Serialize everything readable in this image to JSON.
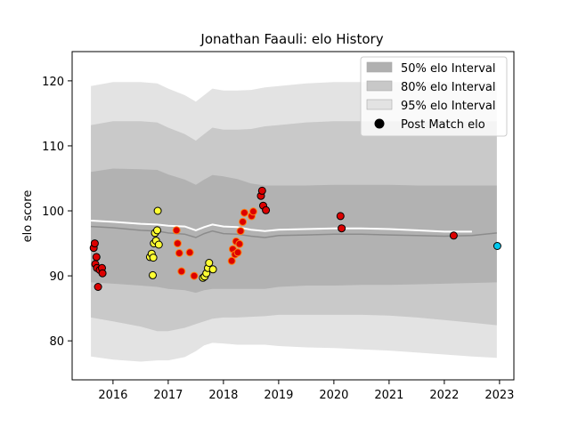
{
  "chart_data": {
    "type": "scatter",
    "title": "Jonathan Faauli: elo History",
    "xlabel": "",
    "ylabel": "elo score",
    "xlim": [
      2015.26,
      2023.26
    ],
    "ylim": [
      74,
      124.5
    ],
    "x_ticks": [
      2016,
      2017,
      2018,
      2019,
      2020,
      2021,
      2022,
      2023
    ],
    "y_ticks": [
      80,
      90,
      100,
      110,
      120
    ],
    "grid": false,
    "legend_position": "top-right",
    "legend": [
      {
        "label": "50% elo Interval",
        "kind": "band",
        "color": "#b0b0b0"
      },
      {
        "label": "80% elo Interval",
        "kind": "band",
        "color": "#c8c8c8"
      },
      {
        "label": "95% elo Interval",
        "kind": "band",
        "color": "#e3e3e3"
      },
      {
        "label": "Post Match elo",
        "kind": "marker",
        "color": "#000000"
      }
    ],
    "colors": {
      "band50": "#b2b2b2",
      "band80": "#c9c9c9",
      "band95": "#e3e3e3",
      "mean_line": "#8c8c8c",
      "white_line": "#ffffff",
      "red": "#dd0000",
      "yellow": "#ffff33",
      "cyan": "#00c8ee",
      "orange_edge": "#ff7f0e",
      "dark_edge": "#000000"
    },
    "bands": {
      "x": [
        2015.6,
        2016.0,
        2016.5,
        2016.8,
        2017.0,
        2017.3,
        2017.5,
        2017.65,
        2017.8,
        2018.0,
        2018.25,
        2018.5,
        2018.75,
        2019.0,
        2019.5,
        2020.0,
        2020.5,
        2021.0,
        2021.5,
        2022.0,
        2022.5,
        2022.95
      ],
      "p95_upper": [
        119.2,
        119.8,
        119.8,
        119.6,
        118.8,
        117.8,
        116.8,
        117.8,
        118.8,
        118.5,
        118.5,
        118.6,
        119.0,
        119.2,
        119.6,
        119.8,
        119.8,
        119.8,
        119.8,
        119.8,
        119.8,
        119.8
      ],
      "p80_upper": [
        113.2,
        113.8,
        113.8,
        113.6,
        112.8,
        111.8,
        110.8,
        111.8,
        112.8,
        112.5,
        112.5,
        112.6,
        113.0,
        113.2,
        113.6,
        113.8,
        113.8,
        113.8,
        113.8,
        113.8,
        113.8,
        113.8
      ],
      "p50_upper": [
        106.0,
        106.5,
        106.4,
        106.3,
        105.6,
        104.8,
        104.0,
        104.8,
        105.5,
        105.3,
        104.9,
        104.2,
        103.9,
        103.9,
        103.9,
        104.0,
        104.0,
        104.0,
        103.9,
        103.9,
        103.9,
        103.9
      ],
      "mean": [
        97.6,
        97.4,
        97.0,
        96.9,
        96.6,
        96.4,
        95.9,
        96.5,
        96.9,
        96.5,
        96.4,
        96.1,
        95.9,
        96.2,
        96.3,
        96.4,
        96.4,
        96.3,
        96.2,
        96.1,
        96.2,
        96.6
      ],
      "p50_lower": [
        89.0,
        88.8,
        88.5,
        88.3,
        88.0,
        87.8,
        87.4,
        87.8,
        88.0,
        88.0,
        88.0,
        88.0,
        88.0,
        88.3,
        88.5,
        88.5,
        88.6,
        88.6,
        88.7,
        88.8,
        88.9,
        89.0
      ],
      "p80_lower": [
        83.6,
        83.0,
        82.2,
        81.5,
        81.5,
        82.0,
        82.6,
        83.0,
        83.4,
        83.6,
        83.6,
        83.7,
        83.8,
        84.0,
        84.0,
        84.0,
        84.0,
        83.9,
        83.6,
        83.2,
        82.8,
        82.4
      ],
      "p95_lower": [
        77.6,
        77.1,
        76.8,
        77.0,
        77.0,
        77.5,
        78.4,
        79.3,
        79.7,
        79.6,
        79.4,
        79.4,
        79.4,
        79.2,
        79.0,
        78.9,
        78.7,
        78.5,
        78.2,
        77.9,
        77.6,
        77.4
      ]
    },
    "white_line": {
      "x": [
        2015.6,
        2016.0,
        2016.5,
        2016.8,
        2017.0,
        2017.3,
        2017.5,
        2017.65,
        2017.8,
        2018.0,
        2018.25,
        2018.5,
        2018.75,
        2019.0,
        2019.5,
        2020.0,
        2020.5,
        2021.0,
        2021.5,
        2022.0,
        2022.5
      ],
      "y": [
        98.5,
        98.3,
        98.0,
        97.9,
        97.7,
        97.6,
        97.0,
        97.5,
        97.9,
        97.6,
        97.5,
        97.1,
        96.9,
        97.1,
        97.2,
        97.3,
        97.3,
        97.2,
        97.0,
        96.8,
        96.8
      ]
    },
    "points": [
      {
        "x": 2015.65,
        "y": 94.3,
        "fill": "red",
        "edge": "dark"
      },
      {
        "x": 2015.67,
        "y": 95.0,
        "fill": "red",
        "edge": "dark"
      },
      {
        "x": 2015.68,
        "y": 91.8,
        "fill": "red",
        "edge": "dark"
      },
      {
        "x": 2015.7,
        "y": 92.9,
        "fill": "red",
        "edge": "dark"
      },
      {
        "x": 2015.71,
        "y": 91.2,
        "fill": "red",
        "edge": "dark"
      },
      {
        "x": 2015.73,
        "y": 88.3,
        "fill": "red",
        "edge": "dark"
      },
      {
        "x": 2015.76,
        "y": 90.9,
        "fill": "red",
        "edge": "dark"
      },
      {
        "x": 2015.8,
        "y": 91.2,
        "fill": "red",
        "edge": "dark"
      },
      {
        "x": 2015.81,
        "y": 90.4,
        "fill": "red",
        "edge": "dark"
      },
      {
        "x": 2016.67,
        "y": 92.9,
        "fill": "yellow",
        "edge": "dark"
      },
      {
        "x": 2016.7,
        "y": 93.4,
        "fill": "yellow",
        "edge": "dark"
      },
      {
        "x": 2016.72,
        "y": 90.1,
        "fill": "yellow",
        "edge": "dark"
      },
      {
        "x": 2016.73,
        "y": 92.8,
        "fill": "yellow",
        "edge": "dark"
      },
      {
        "x": 2016.74,
        "y": 95.0,
        "fill": "yellow",
        "edge": "dark"
      },
      {
        "x": 2016.76,
        "y": 96.6,
        "fill": "yellow",
        "edge": "dark"
      },
      {
        "x": 2016.78,
        "y": 95.4,
        "fill": "yellow",
        "edge": "dark"
      },
      {
        "x": 2016.8,
        "y": 97.0,
        "fill": "yellow",
        "edge": "dark"
      },
      {
        "x": 2016.81,
        "y": 100.0,
        "fill": "yellow",
        "edge": "dark"
      },
      {
        "x": 2016.83,
        "y": 94.8,
        "fill": "yellow",
        "edge": "dark"
      },
      {
        "x": 2017.15,
        "y": 97.0,
        "fill": "red",
        "edge": "orange"
      },
      {
        "x": 2017.17,
        "y": 95.0,
        "fill": "red",
        "edge": "orange"
      },
      {
        "x": 2017.2,
        "y": 93.5,
        "fill": "red",
        "edge": "orange"
      },
      {
        "x": 2017.24,
        "y": 90.7,
        "fill": "red",
        "edge": "orange"
      },
      {
        "x": 2017.39,
        "y": 93.6,
        "fill": "red",
        "edge": "orange"
      },
      {
        "x": 2017.47,
        "y": 90.0,
        "fill": "red",
        "edge": "orange"
      },
      {
        "x": 2017.63,
        "y": 89.7,
        "fill": "yellow",
        "edge": "dark"
      },
      {
        "x": 2017.66,
        "y": 89.9,
        "fill": "yellow",
        "edge": "dark"
      },
      {
        "x": 2017.69,
        "y": 90.4,
        "fill": "yellow",
        "edge": "dark"
      },
      {
        "x": 2017.72,
        "y": 91.2,
        "fill": "yellow",
        "edge": "dark"
      },
      {
        "x": 2017.74,
        "y": 92.0,
        "fill": "yellow",
        "edge": "dark"
      },
      {
        "x": 2017.81,
        "y": 91.0,
        "fill": "yellow",
        "edge": "dark"
      },
      {
        "x": 2018.15,
        "y": 92.3,
        "fill": "red",
        "edge": "orange"
      },
      {
        "x": 2018.17,
        "y": 94.1,
        "fill": "red",
        "edge": "orange"
      },
      {
        "x": 2018.21,
        "y": 93.3,
        "fill": "red",
        "edge": "orange"
      },
      {
        "x": 2018.23,
        "y": 95.3,
        "fill": "red",
        "edge": "orange"
      },
      {
        "x": 2018.26,
        "y": 93.6,
        "fill": "red",
        "edge": "orange"
      },
      {
        "x": 2018.29,
        "y": 94.9,
        "fill": "red",
        "edge": "orange"
      },
      {
        "x": 2018.31,
        "y": 96.9,
        "fill": "red",
        "edge": "orange"
      },
      {
        "x": 2018.35,
        "y": 98.3,
        "fill": "red",
        "edge": "orange"
      },
      {
        "x": 2018.38,
        "y": 99.7,
        "fill": "red",
        "edge": "orange"
      },
      {
        "x": 2018.51,
        "y": 99.2,
        "fill": "red",
        "edge": "orange"
      },
      {
        "x": 2018.54,
        "y": 99.9,
        "fill": "red",
        "edge": "orange"
      },
      {
        "x": 2018.68,
        "y": 102.3,
        "fill": "red",
        "edge": "dark"
      },
      {
        "x": 2018.7,
        "y": 103.1,
        "fill": "red",
        "edge": "dark"
      },
      {
        "x": 2018.72,
        "y": 100.8,
        "fill": "red",
        "edge": "dark"
      },
      {
        "x": 2018.77,
        "y": 100.1,
        "fill": "red",
        "edge": "dark"
      },
      {
        "x": 2020.12,
        "y": 99.2,
        "fill": "red",
        "edge": "dark"
      },
      {
        "x": 2020.14,
        "y": 97.3,
        "fill": "red",
        "edge": "dark"
      },
      {
        "x": 2022.17,
        "y": 96.2,
        "fill": "red",
        "edge": "dark"
      },
      {
        "x": 2022.96,
        "y": 94.6,
        "fill": "cyan",
        "edge": "dark"
      }
    ]
  }
}
